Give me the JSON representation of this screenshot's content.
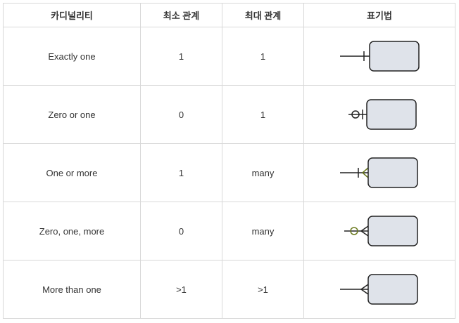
{
  "table": {
    "headers": [
      "카디널리티",
      "최소 관계",
      "최대 관계",
      "표기법"
    ],
    "rows": [
      {
        "cardinality": "Exactly one",
        "min": "1",
        "max": "1",
        "notation_icon": "exactly-one-notation-icon"
      },
      {
        "cardinality": "Zero or one",
        "min": "0",
        "max": "1",
        "notation_icon": "zero-or-one-notation-icon"
      },
      {
        "cardinality": "One or more",
        "min": "1",
        "max": "many",
        "notation_icon": "one-or-more-notation-icon"
      },
      {
        "cardinality": "Zero, one, more",
        "min": "0",
        "max": "many",
        "notation_icon": "zero-one-more-notation-icon"
      },
      {
        "cardinality": "More than one",
        "min": ">1",
        "max": ">1",
        "notation_icon": "more-than-one-notation-icon"
      }
    ]
  },
  "colors": {
    "entity_fill": "#dfe3ea",
    "entity_stroke": "#222222",
    "line": "#222222",
    "accent_green": "#6b7a1e"
  }
}
